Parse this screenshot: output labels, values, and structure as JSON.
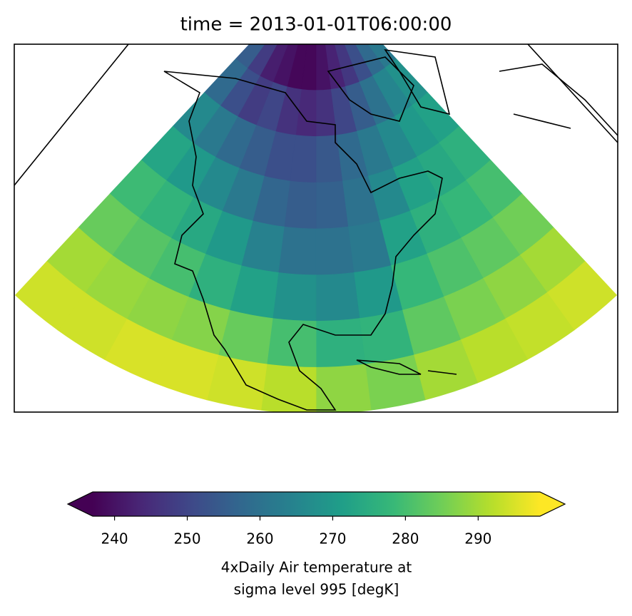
{
  "chart_data": {
    "type": "map",
    "title": "time = 2013-01-01T06:00:00",
    "grid": [
      [
        262,
        258,
        252,
        247,
        243,
        240,
        238,
        238,
        240,
        242,
        248,
        255
      ],
      [
        268,
        265,
        260,
        255,
        250,
        246,
        244,
        246,
        250,
        248,
        252,
        258
      ],
      [
        272,
        270,
        266,
        262,
        258,
        254,
        252,
        252,
        255,
        258,
        262,
        266
      ],
      [
        276,
        274,
        272,
        266,
        260,
        256,
        255,
        257,
        262,
        266,
        270,
        273
      ],
      [
        280,
        278,
        276,
        272,
        262,
        260,
        260,
        264,
        270,
        274,
        277,
        279
      ],
      [
        285,
        283,
        281,
        278,
        270,
        266,
        268,
        272,
        276,
        280,
        282,
        284
      ],
      [
        290,
        288,
        286,
        283,
        277,
        276,
        280,
        284,
        287,
        288,
        289,
        290
      ],
      [
        294,
        293,
        292,
        290,
        286,
        288,
        292,
        294,
        295,
        295,
        294,
        294
      ]
    ],
    "colormap": [
      "#440154",
      "#482878",
      "#3e4989",
      "#31688e",
      "#26828e",
      "#1f9e89",
      "#35b779",
      "#6ece58",
      "#b5de2b",
      "#fde725"
    ],
    "clim": [
      237,
      298.5
    ],
    "colorbar": {
      "ticks": [
        240,
        250,
        260,
        270,
        280,
        290
      ],
      "extend": "both",
      "label": [
        "4xDaily Air temperature at",
        "sigma level 995 [degK]"
      ]
    }
  }
}
